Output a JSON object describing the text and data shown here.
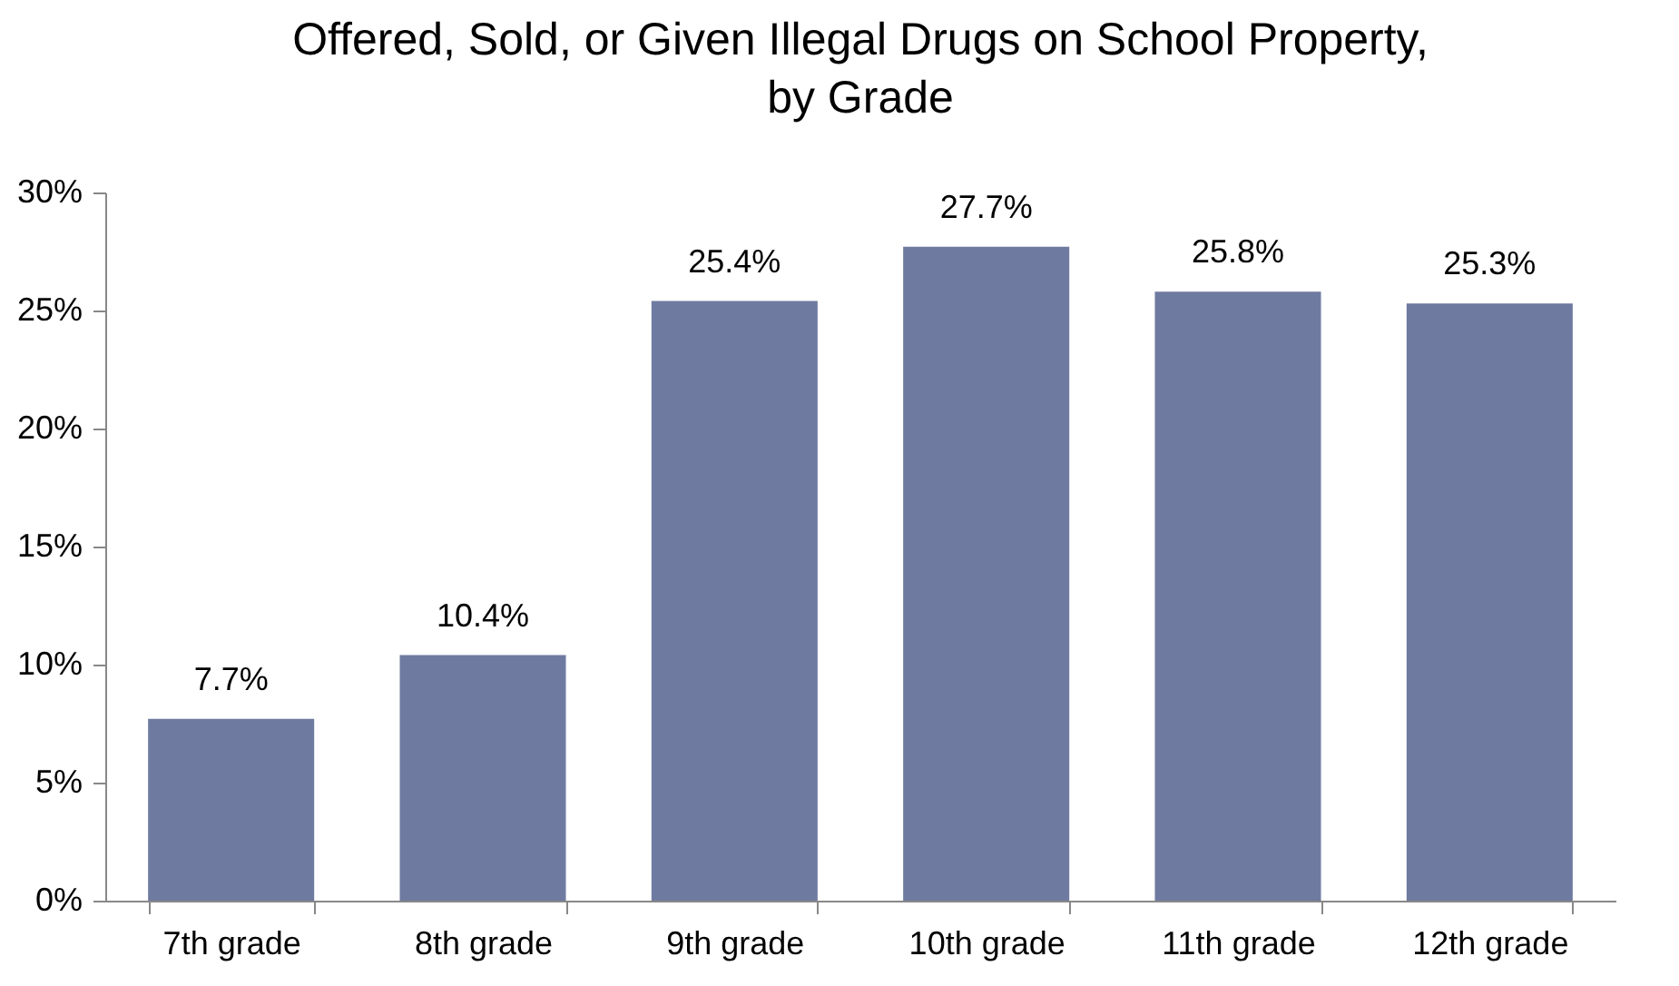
{
  "chart_data": {
    "type": "bar",
    "title": "Offered, Sold, or Given Illegal Drugs on School Property,\nby Grade",
    "categories": [
      "7th grade",
      "8th grade",
      "9th grade",
      "10th grade",
      "11th grade",
      "12th grade"
    ],
    "values": [
      7.7,
      10.4,
      25.4,
      27.7,
      25.8,
      25.3
    ],
    "value_labels": [
      "7.7%",
      "10.4%",
      "25.4%",
      "27.7%",
      "25.8%",
      "25.3%"
    ],
    "color": "#6f7aa0",
    "ylim": [
      0,
      30
    ],
    "yticks": [
      {
        "value": 0,
        "label": "0%"
      },
      {
        "value": 5,
        "label": "5%"
      },
      {
        "value": 10,
        "label": "10%"
      },
      {
        "value": 15,
        "label": "15%"
      },
      {
        "value": 20,
        "label": "20%"
      },
      {
        "value": 25,
        "label": "25%"
      },
      {
        "value": 30,
        "label": "30%"
      }
    ],
    "grid": false
  }
}
